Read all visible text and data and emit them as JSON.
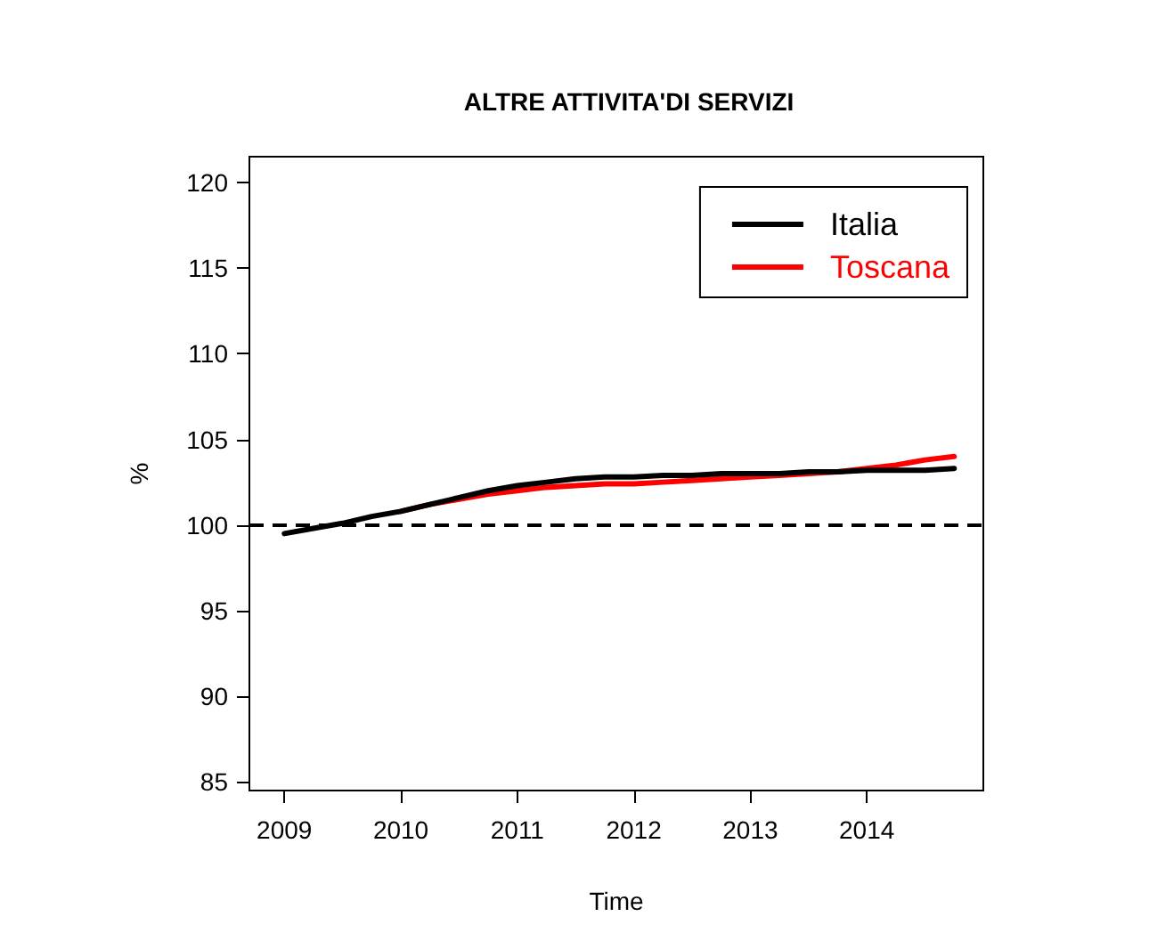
{
  "chart_data": {
    "type": "line",
    "title": "ALTRE ATTIVITA'DI SERVIZI",
    "xlabel": "Time",
    "ylabel": "%",
    "x": [
      2009,
      2009.25,
      2009.5,
      2009.75,
      2010,
      2010.25,
      2010.5,
      2010.75,
      2011,
      2011.25,
      2011.5,
      2011.75,
      2012,
      2012.25,
      2012.5,
      2012.75,
      2013,
      2013.25,
      2013.5,
      2013.75,
      2014,
      2014.25,
      2014.5,
      2014.75
    ],
    "series": [
      {
        "name": "Italia",
        "color": "#000000",
        "values": [
          99.5,
          99.8,
          100.1,
          100.5,
          100.8,
          101.2,
          101.6,
          102.0,
          102.3,
          102.5,
          102.7,
          102.8,
          102.8,
          102.9,
          102.9,
          103.0,
          103.0,
          103.0,
          103.1,
          103.1,
          103.2,
          103.2,
          103.2,
          103.3
        ]
      },
      {
        "name": "Toscana",
        "color": "#ff0000",
        "values": [
          null,
          null,
          null,
          null,
          100.8,
          101.2,
          101.5,
          101.8,
          102.0,
          102.2,
          102.3,
          102.4,
          102.4,
          102.5,
          102.6,
          102.7,
          102.8,
          102.9,
          103.0,
          103.1,
          103.3,
          103.5,
          103.8,
          104.0
        ]
      }
    ],
    "xlim": [
      2008.7,
      2015
    ],
    "xticks": [
      2009,
      2010,
      2011,
      2012,
      2013,
      2014
    ],
    "ylim": [
      84.5,
      121.5
    ],
    "yticks": [
      85,
      90,
      95,
      100,
      105,
      110,
      115,
      120
    ],
    "ref_lines": [
      {
        "axis": "y",
        "value": 100,
        "color": "#000000",
        "line_style": "dashed"
      }
    ],
    "legend": "top right",
    "grid": false,
    "marker": "none",
    "line_style": "solid"
  }
}
